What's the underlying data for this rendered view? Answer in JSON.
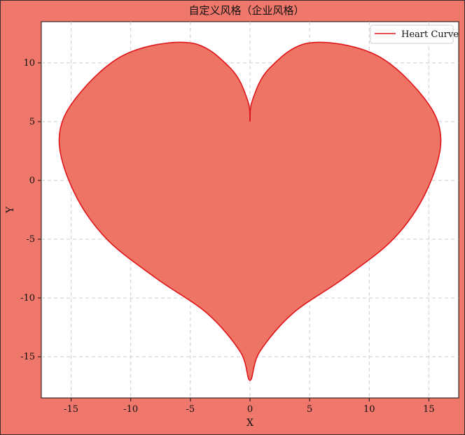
{
  "chart_data": {
    "type": "area",
    "title": "自定义风格（企业风格）",
    "xlabel": "X",
    "ylabel": "Y",
    "xlim": [
      -17.5,
      17.5
    ],
    "ylim": [
      -18.5,
      13.5
    ],
    "xticks": [
      -15,
      -10,
      -5,
      0,
      5,
      10,
      15
    ],
    "yticks": [
      -15,
      -10,
      -5,
      0,
      5,
      10
    ],
    "xtick_labels": [
      "-15",
      "-10",
      "-5",
      "0",
      "5",
      "10",
      "15"
    ],
    "ytick_labels": [
      "-15",
      "-10",
      "-5",
      "0",
      "5",
      "10"
    ],
    "grid": true,
    "legend_position": "top-right",
    "series": [
      {
        "name": "Heart Curve",
        "line_color": "#e0161b",
        "fill_color": "#ee7566",
        "x": [
          0,
          0.2,
          1.6,
          5.0,
          10.5,
          14.6,
          16.0,
          14.8,
          12.1,
          7.9,
          3.6,
          0.8,
          0,
          -0.8,
          -3.6,
          -7.9,
          -12.1,
          -14.8,
          -16.0,
          -14.6,
          -10.5,
          -5.0,
          -1.6,
          -0.2,
          0
        ],
        "y": [
          5.0,
          6.8,
          9.5,
          11.7,
          10.7,
          7.0,
          3.5,
          -0.9,
          -4.9,
          -8.3,
          -11.3,
          -14.6,
          -17.0,
          -14.6,
          -11.3,
          -8.3,
          -4.9,
          -0.9,
          3.5,
          7.0,
          10.7,
          11.7,
          9.5,
          6.8,
          5.0
        ]
      }
    ]
  },
  "colors": {
    "background": "#f0776b",
    "plot_area": "#ffffff",
    "grid": "#cccccc"
  }
}
